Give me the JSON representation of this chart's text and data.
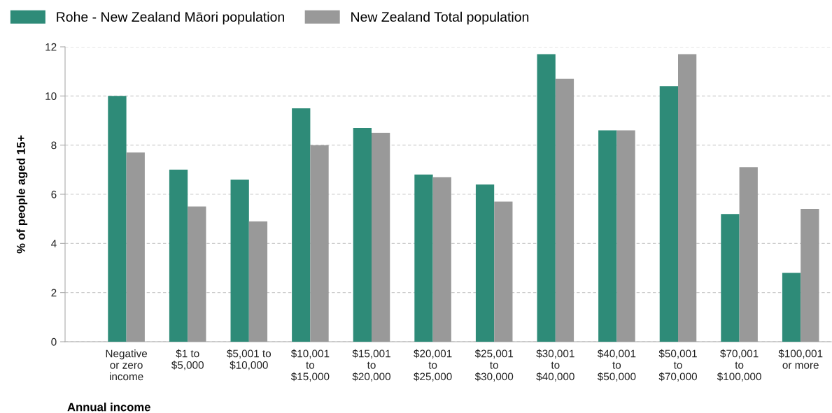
{
  "chart_data": {
    "type": "bar",
    "xlabel": "Annual income",
    "ylabel": "% of people aged 15+",
    "categories": [
      "Negative\nor zero\nincome",
      "$1 to\n$5,000",
      "$5,001 to\n$10,000",
      "$10,001\nto\n$15,000",
      "$15,001\nto\n$20,000",
      "$20,001\nto\n$25,000",
      "$25,001\nto\n$30,000",
      "$30,001\nto\n$40,000",
      "$40,001\nto\n$50,000",
      "$50,001\nto\n$70,000",
      "$70,001\nto\n$100,000",
      "$100,001\nor more"
    ],
    "series": [
      {
        "name": "Rohe - New Zealand Māori population",
        "color": "#2e8b78",
        "values": [
          10.0,
          7.0,
          6.6,
          9.5,
          8.7,
          6.8,
          6.4,
          11.7,
          8.6,
          10.4,
          5.2,
          2.8
        ]
      },
      {
        "name": "New Zealand Total population",
        "color": "#999999",
        "values": [
          7.7,
          5.5,
          4.9,
          8.0,
          8.5,
          6.7,
          5.7,
          10.7,
          8.6,
          11.7,
          7.1,
          5.4
        ]
      }
    ],
    "ylim": [
      0,
      12
    ],
    "yticks": [
      0,
      2,
      4,
      6,
      8,
      10,
      12
    ],
    "grid": "y",
    "legend": "top left"
  }
}
